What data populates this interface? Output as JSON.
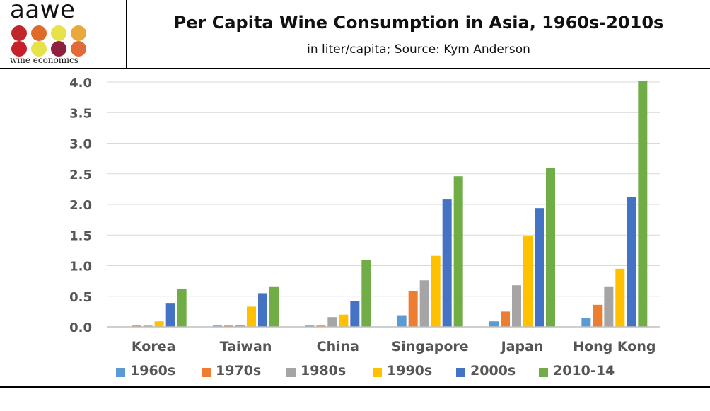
{
  "logo": {
    "word": "aawe",
    "subtext": "wine economics",
    "dot_colors": [
      "#c0272d",
      "#e06a2a",
      "#e8e24a",
      "#e8a83a",
      "#c8202a",
      "#e8e24a",
      "#8e1f3f",
      "#e06a3a"
    ]
  },
  "header": {
    "title": "Per Capita Wine Consumption in Asia, 1960s-2010s",
    "subtitle": "in liter/capita; Source: Kym Anderson"
  },
  "chart_data": {
    "type": "bar",
    "title": "Per Capita Wine Consumption in Asia, 1960s-2010s",
    "xlabel": "",
    "ylabel": "",
    "ylim": [
      0,
      4
    ],
    "yticks": [
      "0.0",
      "0.5",
      "1.0",
      "1.5",
      "2.0",
      "2.5",
      "3.0",
      "3.5",
      "4.0"
    ],
    "grid": true,
    "legend_position": "bottom",
    "categories": [
      "Korea",
      "Taiwan",
      "China",
      "Singapore",
      "Japan",
      "Hong Kong"
    ],
    "series": [
      {
        "name": "1960s",
        "color": "#5b9bd5",
        "values": [
          0.0,
          0.02,
          0.02,
          0.19,
          0.09,
          0.15
        ]
      },
      {
        "name": "1970s",
        "color": "#ed7d31",
        "values": [
          0.02,
          0.02,
          0.02,
          0.58,
          0.25,
          0.36
        ]
      },
      {
        "name": "1980s",
        "color": "#a5a5a5",
        "values": [
          0.02,
          0.03,
          0.16,
          0.76,
          0.68,
          0.65
        ]
      },
      {
        "name": "1990s",
        "color": "#ffc000",
        "values": [
          0.09,
          0.33,
          0.2,
          1.16,
          1.48,
          0.95
        ]
      },
      {
        "name": "2000s",
        "color": "#4472c4",
        "values": [
          0.38,
          0.55,
          0.42,
          2.08,
          1.94,
          2.12
        ]
      },
      {
        "name": "2010-14",
        "color": "#70ad47",
        "values": [
          0.62,
          0.65,
          1.09,
          2.46,
          2.6,
          4.02
        ]
      }
    ]
  }
}
